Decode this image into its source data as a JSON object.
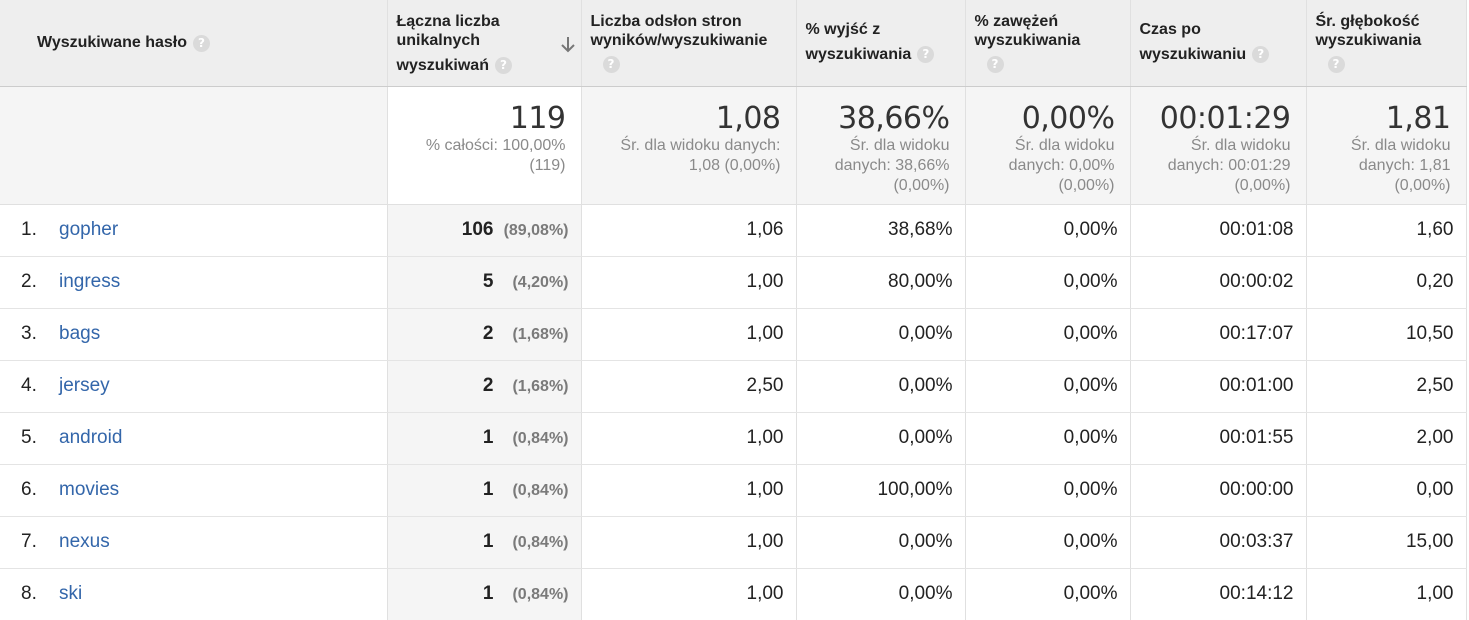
{
  "columns": [
    {
      "label": "Wyszukiwane hasło",
      "help": "?"
    },
    {
      "line1": "Łączna liczba",
      "line2": "unikalnych",
      "line3": "wyszukiwań",
      "help": "?"
    },
    {
      "line1": "Liczba odsłon stron",
      "line2": "wyników/wyszukiwanie",
      "help": "?"
    },
    {
      "line1": "% wyjść z",
      "line2": "wyszukiwania",
      "help": "?"
    },
    {
      "line1": "% zawężeń",
      "line2": "wyszukiwania",
      "help": "?"
    },
    {
      "line1": "Czas po",
      "line2": "wyszukiwaniu",
      "help": "?"
    },
    {
      "line1": "Śr. głębokość",
      "line2": "wyszukiwania",
      "help": "?"
    }
  ],
  "totals": [
    {
      "value": "119",
      "sub1": "% całości: 100,00%",
      "sub2": "(119)"
    },
    {
      "value": "1,08",
      "sub1": "Śr. dla widoku danych:",
      "sub2": "1,08 (0,00%)"
    },
    {
      "value": "38,66%",
      "sub1": "Śr. dla widoku",
      "sub2": "danych: 38,66%",
      "sub3": "(0,00%)"
    },
    {
      "value": "0,00%",
      "sub1": "Śr. dla widoku",
      "sub2": "danych: 0,00%",
      "sub3": "(0,00%)"
    },
    {
      "value": "00:01:29",
      "sub1": "Śr. dla widoku",
      "sub2": "danych: 00:01:29",
      "sub3": "(0,00%)"
    },
    {
      "value": "1,81",
      "sub1": "Śr. dla widoku",
      "sub2": "danych: 1,81",
      "sub3": "(0,00%)"
    }
  ],
  "rows": [
    {
      "index": "1.",
      "term": "gopher",
      "unique": "106",
      "pct": "(89,08%)",
      "pages": "1,06",
      "exits": "38,68%",
      "refinements": "0,00%",
      "time": "00:01:08",
      "depth": "1,60"
    },
    {
      "index": "2.",
      "term": "ingress",
      "unique": "5",
      "pct": "(4,20%)",
      "pages": "1,00",
      "exits": "80,00%",
      "refinements": "0,00%",
      "time": "00:00:02",
      "depth": "0,20"
    },
    {
      "index": "3.",
      "term": "bags",
      "unique": "2",
      "pct": "(1,68%)",
      "pages": "1,00",
      "exits": "0,00%",
      "refinements": "0,00%",
      "time": "00:17:07",
      "depth": "10,50"
    },
    {
      "index": "4.",
      "term": "jersey",
      "unique": "2",
      "pct": "(1,68%)",
      "pages": "2,50",
      "exits": "0,00%",
      "refinements": "0,00%",
      "time": "00:01:00",
      "depth": "2,50"
    },
    {
      "index": "5.",
      "term": "android",
      "unique": "1",
      "pct": "(0,84%)",
      "pages": "1,00",
      "exits": "0,00%",
      "refinements": "0,00%",
      "time": "00:01:55",
      "depth": "2,00"
    },
    {
      "index": "6.",
      "term": "movies",
      "unique": "1",
      "pct": "(0,84%)",
      "pages": "1,00",
      "exits": "100,00%",
      "refinements": "0,00%",
      "time": "00:00:00",
      "depth": "0,00"
    },
    {
      "index": "7.",
      "term": "nexus",
      "unique": "1",
      "pct": "(0,84%)",
      "pages": "1,00",
      "exits": "0,00%",
      "refinements": "0,00%",
      "time": "00:03:37",
      "depth": "15,00"
    },
    {
      "index": "8.",
      "term": "ski",
      "unique": "1",
      "pct": "(0,84%)",
      "pages": "1,00",
      "exits": "0,00%",
      "refinements": "0,00%",
      "time": "00:14:12",
      "depth": "1,00"
    }
  ],
  "sort": {
    "icon": "arrow-down-icon",
    "direction": "descending"
  }
}
